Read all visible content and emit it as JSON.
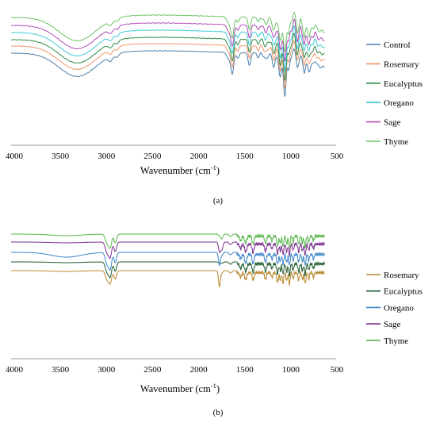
{
  "chart_data": [
    {
      "type": "line",
      "panel_label": "(a)",
      "xlabel": "Wavenumber (cm-1)",
      "xlabel_parts": [
        "Wavenumber (cm",
        "-1",
        ")"
      ],
      "xlim": [
        4000,
        500
      ],
      "x_reversed": true,
      "xticks": [
        "4000",
        "3500",
        "3000",
        "2500",
        "2000",
        "1500",
        "1000",
        "500"
      ],
      "legend_position": "right",
      "grid": false,
      "series": [
        {
          "name": "Control",
          "color": "#4a7ea8"
        },
        {
          "name": "Rosemary",
          "color": "#f0956a"
        },
        {
          "name": "Eucalyptus",
          "color": "#2e8b45"
        },
        {
          "name": "Oregano",
          "color": "#3ec9d6"
        },
        {
          "name": "Sage",
          "color": "#b04bb8"
        },
        {
          "name": "Thyme",
          "color": "#6cc463"
        }
      ]
    },
    {
      "type": "line",
      "panel_label": "(b)",
      "xlabel": "Wavenumber (cm-1)",
      "xlabel_parts": [
        "Wavenumber (cm",
        "-1",
        ")"
      ],
      "xlim": [
        4000,
        500
      ],
      "x_reversed": true,
      "xticks": [
        "4000",
        "3500",
        "3000",
        "2500",
        "2000",
        "1500",
        "1000",
        "500"
      ],
      "legend_position": "right",
      "grid": false,
      "series": [
        {
          "name": "Rosemary",
          "color": "#b8862a"
        },
        {
          "name": "Eucalyptus",
          "color": "#1f5a2e"
        },
        {
          "name": "Oregano",
          "color": "#3c86c8"
        },
        {
          "name": "Sage",
          "color": "#7a2e8e"
        },
        {
          "name": "Thyme",
          "color": "#58b548"
        }
      ]
    }
  ]
}
